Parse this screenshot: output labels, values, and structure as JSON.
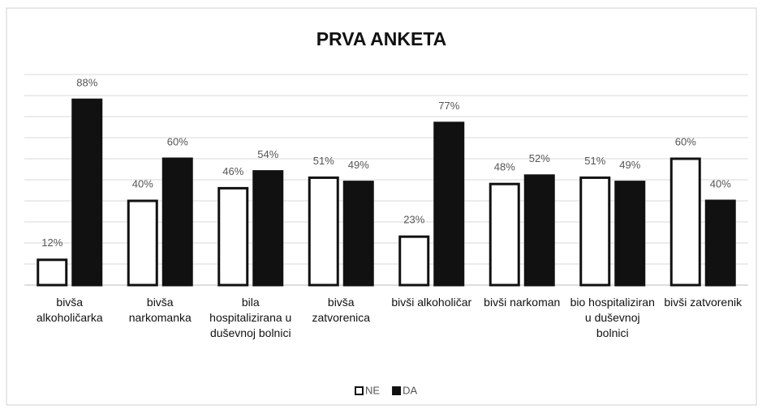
{
  "chart_data": {
    "type": "bar",
    "title": "PRVA ANKETA",
    "categories": [
      "bivša alkoholičarka",
      "bivša narkomanka",
      "bila hospitalizirana u duševnoj bolnici",
      "bivša zatvorenica",
      "bivši alkoholičar",
      "bivši narkoman",
      "bio hospitaliziran u duševnoj bolnici",
      "bivši zatvorenik"
    ],
    "series": [
      {
        "name": "NE",
        "color": "#ffffff",
        "values": [
          12,
          40,
          46,
          51,
          23,
          48,
          51,
          60
        ],
        "value_labels": [
          "12%",
          "40%",
          "46%",
          "51%",
          "23%",
          "48%",
          "51%",
          "60%"
        ]
      },
      {
        "name": "DA",
        "color": "#111111",
        "values": [
          88,
          60,
          54,
          49,
          77,
          52,
          49,
          40
        ],
        "value_labels": [
          "88%",
          "60%",
          "54%",
          "49%",
          "77%",
          "52%",
          "49%",
          "40%"
        ]
      }
    ],
    "ylim": [
      0,
      100
    ],
    "yticks": [
      0,
      10,
      20,
      30,
      40,
      50,
      60,
      70,
      80,
      90,
      100
    ],
    "grid": true,
    "legend": "bottom"
  }
}
